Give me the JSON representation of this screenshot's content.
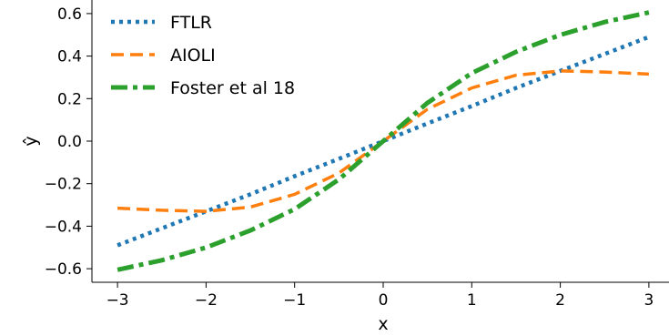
{
  "chart_data": {
    "type": "line",
    "title": "",
    "xlabel": "x",
    "ylabel": "ŷ",
    "xlim": [
      -3.2,
      3.2
    ],
    "ylim": [
      -0.66,
      0.66
    ],
    "xticks": [
      -3,
      -2,
      -1,
      0,
      1,
      2,
      3
    ],
    "xtick_labels": [
      "−3",
      "−2",
      "−1",
      "0",
      "1",
      "2",
      "3"
    ],
    "yticks": [
      -0.6,
      -0.4,
      -0.2,
      0.0,
      0.2,
      0.4,
      0.6
    ],
    "ytick_labels": [
      "−0.6",
      "−0.4",
      "−0.2",
      "0.0",
      "0.2",
      "0.4",
      "0.6"
    ],
    "grid": false,
    "legend_position": "top-left",
    "x": [
      -3.0,
      -2.5,
      -2.0,
      -1.5,
      -1.0,
      -0.5,
      0.0,
      0.5,
      1.0,
      1.5,
      2.0,
      2.5,
      3.0
    ],
    "series": [
      {
        "name": "FTLR",
        "color": "#1f77b4",
        "style": "dotted",
        "values": [
          -0.49,
          -0.41,
          -0.33,
          -0.25,
          -0.165,
          -0.083,
          0.0,
          0.083,
          0.165,
          0.25,
          0.33,
          0.41,
          0.49
        ]
      },
      {
        "name": "AIOLI",
        "color": "#ff7f0e",
        "style": "dashed",
        "values": [
          -0.315,
          -0.325,
          -0.33,
          -0.31,
          -0.25,
          -0.15,
          0.0,
          0.15,
          0.25,
          0.31,
          0.33,
          0.325,
          0.315
        ]
      },
      {
        "name": "Foster et al 18",
        "color": "#2ca02c",
        "style": "dashdot",
        "values": [
          -0.605,
          -0.56,
          -0.5,
          -0.42,
          -0.32,
          -0.18,
          0.0,
          0.18,
          0.32,
          0.42,
          0.5,
          0.56,
          0.605
        ]
      }
    ]
  }
}
